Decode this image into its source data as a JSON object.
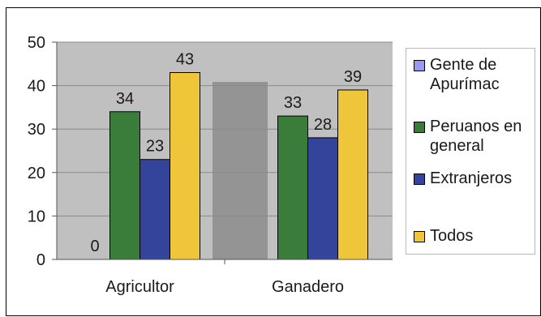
{
  "chart_data": {
    "type": "bar",
    "categories": [
      "Agricultor",
      "Ganadero"
    ],
    "series": [
      {
        "name": "Gente de Apurímac",
        "values": [
          0,
          null
        ],
        "color": "#9999ee"
      },
      {
        "name": "Peruanos en general",
        "values": [
          34,
          33
        ],
        "color": "#3a7d3a"
      },
      {
        "name": "Extranjeros",
        "values": [
          23,
          28
        ],
        "color": "#33449a"
      },
      {
        "name": "Todos",
        "values": [
          43,
          39
        ],
        "color": "#efc53a"
      }
    ],
    "data_labels": [
      [
        "0",
        "34",
        "23",
        "43"
      ],
      [
        "",
        "33",
        "28",
        "39"
      ]
    ],
    "ylim": [
      0,
      50
    ],
    "yticks": [
      "0",
      "10",
      "20",
      "30",
      "40",
      "50"
    ],
    "grid": true,
    "legend_position": "right",
    "plot_background": "#c0c0c0"
  }
}
